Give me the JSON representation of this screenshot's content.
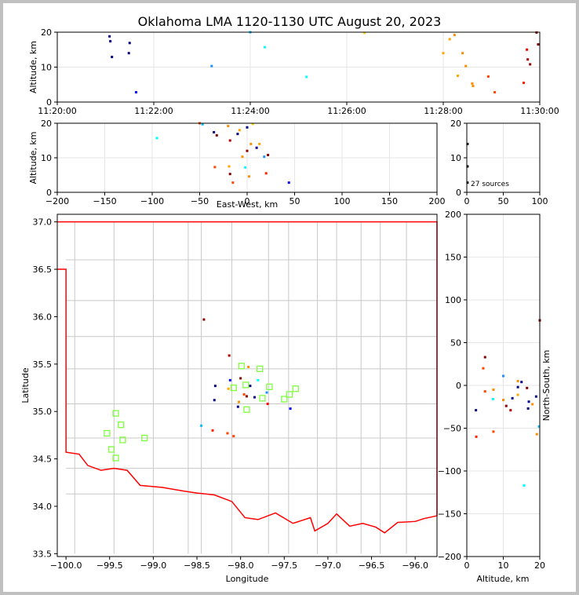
{
  "title": "Oklahoma LMA 1120-1130 UTC August 20, 2023",
  "source_count": "27 sources",
  "colors": {
    "frame": "#000000",
    "grid": "#e6e6e6",
    "county": "#c8c8c8",
    "state": "#ff0000",
    "station": "#7fff3f"
  },
  "chart_data": [
    {
      "id": "time_height",
      "type": "scatter",
      "xlabel": "",
      "ylabel": "Altitude, km",
      "xlim": [
        "11:20:00",
        "11:30:00"
      ],
      "ylim": [
        0,
        20
      ],
      "xticks": [
        "11:20:00",
        "11:22:00",
        "11:24:00",
        "11:26:00",
        "11:28:00",
        "11:30:00"
      ],
      "yticks": [
        "0",
        "10",
        "20"
      ],
      "points": [
        {
          "t": "11:21:05",
          "alt": 18.8,
          "c": "#00008b"
        },
        {
          "t": "11:21:06",
          "alt": 17.4,
          "c": "#00008b"
        },
        {
          "t": "11:21:08",
          "alt": 12.9,
          "c": "#00008b"
        },
        {
          "t": "11:21:30",
          "alt": 16.9,
          "c": "#000080"
        },
        {
          "t": "11:21:29",
          "alt": 14.0,
          "c": "#000080"
        },
        {
          "t": "11:21:38",
          "alt": 2.8,
          "c": "#0000ff"
        },
        {
          "t": "11:23:12",
          "alt": 10.3,
          "c": "#1e90ff"
        },
        {
          "t": "11:24:00",
          "alt": 20.0,
          "c": "#00bfff"
        },
        {
          "t": "11:24:18",
          "alt": 15.7,
          "c": "#00ffff"
        },
        {
          "t": "11:25:10",
          "alt": 7.2,
          "c": "#00ffff"
        },
        {
          "t": "11:26:22",
          "alt": 19.8,
          "c": "#ffd700"
        },
        {
          "t": "11:28:00",
          "alt": 14.0,
          "c": "#ffa500"
        },
        {
          "t": "11:28:08",
          "alt": 18.0,
          "c": "#ffa500"
        },
        {
          "t": "11:28:14",
          "alt": 19.2,
          "c": "#ff8c00"
        },
        {
          "t": "11:28:18",
          "alt": 7.5,
          "c": "#ffa500"
        },
        {
          "t": "11:28:24",
          "alt": 14.0,
          "c": "#ff8c00"
        },
        {
          "t": "11:28:28",
          "alt": 10.3,
          "c": "#ff8c00"
        },
        {
          "t": "11:28:36",
          "alt": 5.3,
          "c": "#ff8c00"
        },
        {
          "t": "11:28:37",
          "alt": 4.6,
          "c": "#ff8c00"
        },
        {
          "t": "11:28:56",
          "alt": 7.3,
          "c": "#ff4500"
        },
        {
          "t": "11:29:04",
          "alt": 2.8,
          "c": "#ff4500"
        },
        {
          "t": "11:29:40",
          "alt": 5.5,
          "c": "#ff2000"
        },
        {
          "t": "11:29:44",
          "alt": 15.0,
          "c": "#ff0000"
        },
        {
          "t": "11:29:45",
          "alt": 12.2,
          "c": "#b00000"
        },
        {
          "t": "11:29:48",
          "alt": 10.8,
          "c": "#8b0000"
        },
        {
          "t": "11:29:56",
          "alt": 19.9,
          "c": "#8b0000"
        },
        {
          "t": "11:29:58",
          "alt": 16.5,
          "c": "#800000"
        }
      ]
    },
    {
      "id": "ew_alt",
      "type": "scatter",
      "xlabel": "East-West, km",
      "ylabel": "Altitude, km",
      "xlim": [
        -200,
        200
      ],
      "ylim": [
        0,
        20
      ],
      "xticks": [
        "−200",
        "−150",
        "−100",
        "−50",
        "0",
        "50",
        "100",
        "150",
        "200"
      ],
      "yticks": [
        "0",
        "10",
        "20"
      ],
      "points": [
        {
          "x": -95,
          "y": 15.7,
          "c": "#00ffff"
        },
        {
          "x": -47,
          "y": 19.7,
          "c": "#00bfff"
        },
        {
          "x": -50,
          "y": 20.0,
          "c": "#ff4500"
        },
        {
          "x": -35,
          "y": 17.4,
          "c": "#00008b"
        },
        {
          "x": -32,
          "y": 16.5,
          "c": "#800000"
        },
        {
          "x": -20,
          "y": 19.2,
          "c": "#ff8c00"
        },
        {
          "x": -18,
          "y": 15.0,
          "c": "#b00000"
        },
        {
          "x": -10,
          "y": 16.9,
          "c": "#000080"
        },
        {
          "x": -8,
          "y": 18.0,
          "c": "#ffa500"
        },
        {
          "x": 0,
          "y": 18.8,
          "c": "#00008b"
        },
        {
          "x": 6,
          "y": 19.8,
          "c": "#ffd700"
        },
        {
          "x": 0,
          "y": 12.0,
          "c": "#8b0000"
        },
        {
          "x": 4,
          "y": 14.0,
          "c": "#ff8c00"
        },
        {
          "x": 10,
          "y": 12.9,
          "c": "#00008b"
        },
        {
          "x": 13,
          "y": 14.0,
          "c": "#ffa500"
        },
        {
          "x": -5,
          "y": 10.3,
          "c": "#ff8c00"
        },
        {
          "x": 18,
          "y": 10.3,
          "c": "#1e90ff"
        },
        {
          "x": 22,
          "y": 10.8,
          "c": "#8b0000"
        },
        {
          "x": -34,
          "y": 7.3,
          "c": "#ff4500"
        },
        {
          "x": -19,
          "y": 7.5,
          "c": "#ffa500"
        },
        {
          "x": -2,
          "y": 7.2,
          "c": "#00ffff"
        },
        {
          "x": -18,
          "y": 5.3,
          "c": "#800000"
        },
        {
          "x": 20,
          "y": 5.5,
          "c": "#ff2000"
        },
        {
          "x": 2,
          "y": 4.6,
          "c": "#ff8c00"
        },
        {
          "x": -15,
          "y": 2.8,
          "c": "#ff4500"
        },
        {
          "x": 44,
          "y": 2.8,
          "c": "#0000ff"
        }
      ]
    },
    {
      "id": "histogram",
      "type": "line",
      "xlabel": "",
      "ylabel": "",
      "xlim": [
        0,
        100
      ],
      "ylim": [
        0,
        20
      ],
      "xticks": [
        "0",
        "50",
        "100"
      ],
      "yticks": [
        "0",
        "10",
        "20"
      ],
      "points": [
        {
          "x": 1,
          "y": 14.0
        },
        {
          "x": 1,
          "y": 7.5
        },
        {
          "x": 1,
          "y": 2.8
        }
      ]
    },
    {
      "id": "plan_view",
      "type": "scatter",
      "xlabel": "Longitude",
      "ylabel": "Latitude",
      "xlim": [
        -100.1,
        -95.75
      ],
      "ylim": [
        33.47,
        37.08
      ],
      "xticks": [
        "−100.0",
        "−99.5",
        "−99.0",
        "−98.5",
        "−98.0",
        "−97.5",
        "−97.0",
        "−96.5",
        "−96.0"
      ],
      "yticks": [
        "33.5",
        "34.0",
        "34.5",
        "35.0",
        "35.5",
        "36.0",
        "36.5",
        "37.0"
      ],
      "points": [
        {
          "lon": -98.42,
          "lat": 35.97,
          "c": "#8b0000"
        },
        {
          "lon": -98.13,
          "lat": 35.59,
          "c": "#b00000"
        },
        {
          "lon": -97.91,
          "lat": 35.47,
          "c": "#ff8c00"
        },
        {
          "lon": -98.12,
          "lat": 35.33,
          "c": "#0000ff"
        },
        {
          "lon": -98.0,
          "lat": 35.35,
          "c": "#800000"
        },
        {
          "lon": -98.29,
          "lat": 35.27,
          "c": "#000080"
        },
        {
          "lon": -98.14,
          "lat": 35.24,
          "c": "#ffa500"
        },
        {
          "lon": -97.89,
          "lat": 35.27,
          "c": "#000080"
        },
        {
          "lon": -97.96,
          "lat": 35.18,
          "c": "#ff4500"
        },
        {
          "lon": -97.93,
          "lat": 35.16,
          "c": "#8b0000"
        },
        {
          "lon": -97.84,
          "lat": 35.15,
          "c": "#00008b"
        },
        {
          "lon": -98.3,
          "lat": 35.12,
          "c": "#00008b"
        },
        {
          "lon": -98.02,
          "lat": 35.1,
          "c": "#ff8c00"
        },
        {
          "lon": -97.69,
          "lat": 35.08,
          "c": "#ff0000"
        },
        {
          "lon": -98.03,
          "lat": 35.05,
          "c": "#00008b"
        },
        {
          "lon": -97.43,
          "lat": 35.03,
          "c": "#0000ff"
        },
        {
          "lon": -98.45,
          "lat": 34.85,
          "c": "#00bfff"
        },
        {
          "lon": -98.15,
          "lat": 34.77,
          "c": "#ff4500"
        },
        {
          "lon": -98.32,
          "lat": 34.8,
          "c": "#ff2000"
        },
        {
          "lon": -98.08,
          "lat": 34.74,
          "c": "#ff4500"
        },
        {
          "lon": -97.8,
          "lat": 35.33,
          "c": "#00ffff"
        },
        {
          "lon": -97.7,
          "lat": 35.2,
          "c": "#1e90ff"
        }
      ],
      "stations": [
        {
          "lon": -97.99,
          "lat": 35.48
        },
        {
          "lon": -97.78,
          "lat": 35.45
        },
        {
          "lon": -98.08,
          "lat": 35.25
        },
        {
          "lon": -97.94,
          "lat": 35.28
        },
        {
          "lon": -97.67,
          "lat": 35.26
        },
        {
          "lon": -97.75,
          "lat": 35.14
        },
        {
          "lon": -97.5,
          "lat": 35.13
        },
        {
          "lon": -97.44,
          "lat": 35.18
        },
        {
          "lon": -97.37,
          "lat": 35.24
        },
        {
          "lon": -97.93,
          "lat": 35.02
        },
        {
          "lon": -99.43,
          "lat": 34.98
        },
        {
          "lon": -99.37,
          "lat": 34.86
        },
        {
          "lon": -99.53,
          "lat": 34.77
        },
        {
          "lon": -99.35,
          "lat": 34.7
        },
        {
          "lon": -99.1,
          "lat": 34.72
        },
        {
          "lon": -99.48,
          "lat": 34.6
        },
        {
          "lon": -99.43,
          "lat": 34.51
        }
      ]
    },
    {
      "id": "alt_ns",
      "type": "scatter",
      "xlabel": "Altitude, km",
      "ylabel": "North-South, km",
      "xlim": [
        0,
        20
      ],
      "ylim": [
        -200,
        200
      ],
      "xticks": [
        "0",
        "10",
        "20"
      ],
      "yticks": [
        "−200",
        "−150",
        "−100",
        "−50",
        "0",
        "50",
        "100",
        "150",
        "200"
      ],
      "points": [
        {
          "x": 20,
          "y": 76,
          "c": "#8b0000"
        },
        {
          "x": 5,
          "y": 33,
          "c": "#800000"
        },
        {
          "x": 4.5,
          "y": 20,
          "c": "#ff4500"
        },
        {
          "x": 10,
          "y": 11,
          "c": "#1e90ff"
        },
        {
          "x": 14,
          "y": 5,
          "c": "#ff8c00"
        },
        {
          "x": 15,
          "y": 4,
          "c": "#00008b"
        },
        {
          "x": 14,
          "y": -2,
          "c": "#000080"
        },
        {
          "x": 16.5,
          "y": -3,
          "c": "#800000"
        },
        {
          "x": 5,
          "y": -7,
          "c": "#ff4500"
        },
        {
          "x": 7.3,
          "y": -5,
          "c": "#ff8c00"
        },
        {
          "x": 14,
          "y": -11,
          "c": "#ffa500"
        },
        {
          "x": 19,
          "y": -13,
          "c": "#00008b"
        },
        {
          "x": 10,
          "y": -17,
          "c": "#ff8c00"
        },
        {
          "x": 12.5,
          "y": -15,
          "c": "#000080"
        },
        {
          "x": 7.2,
          "y": -16,
          "c": "#00ffff"
        },
        {
          "x": 17,
          "y": -19,
          "c": "#00008b"
        },
        {
          "x": 18,
          "y": -22,
          "c": "#ff8c00"
        },
        {
          "x": 10.8,
          "y": -24,
          "c": "#8b0000"
        },
        {
          "x": 2.5,
          "y": -29,
          "c": "#00008b"
        },
        {
          "x": 12,
          "y": -29,
          "c": "#b00000"
        },
        {
          "x": 16.8,
          "y": -27,
          "c": "#000080"
        },
        {
          "x": 19.8,
          "y": -48,
          "c": "#00bfff"
        },
        {
          "x": 7.3,
          "y": -54,
          "c": "#ff4500"
        },
        {
          "x": 19.2,
          "y": -57,
          "c": "#ff8c00"
        },
        {
          "x": 2.6,
          "y": -60,
          "c": "#ff2000"
        },
        {
          "x": 15.7,
          "y": -117,
          "c": "#00ffff"
        }
      ]
    }
  ]
}
